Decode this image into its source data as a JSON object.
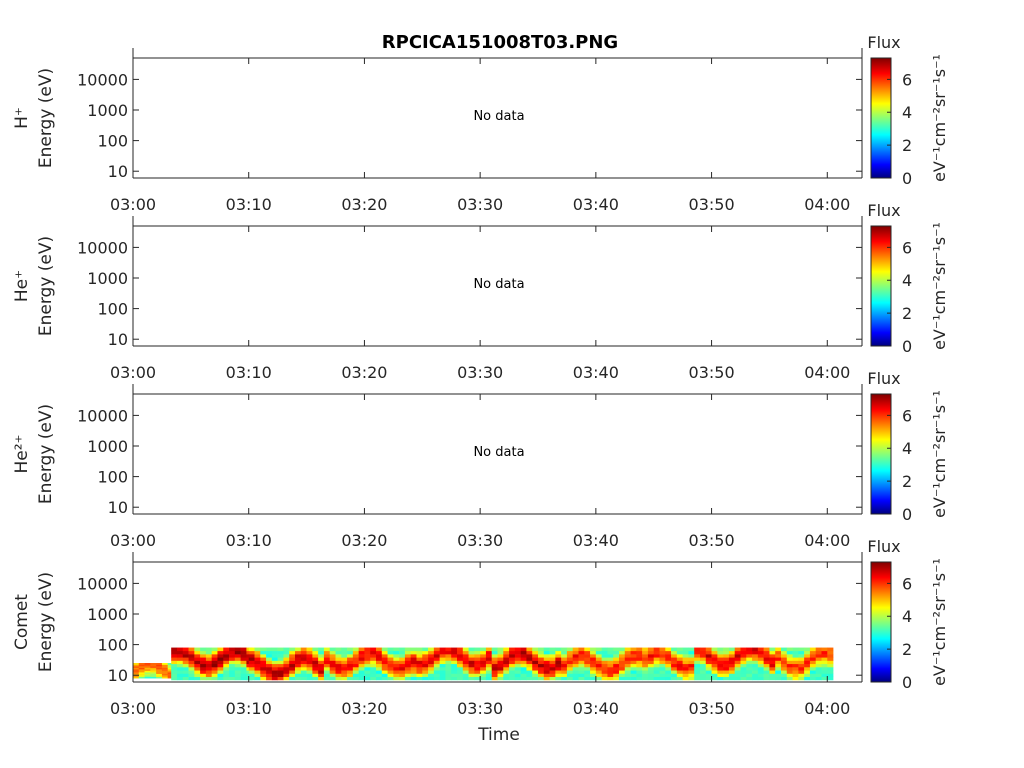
{
  "chart_data": {
    "type": "heatmap",
    "title": "RPCICA151008T03.PNG",
    "xlabel": "Time",
    "x_ticks": [
      "03:00",
      "03:10",
      "03:20",
      "03:30",
      "03:40",
      "03:50",
      "04:00"
    ],
    "x_range_minutes": [
      0,
      63
    ],
    "y_ticks": [
      "10",
      "100",
      "1000",
      "10000"
    ],
    "y_range": [
      6,
      50000
    ],
    "y_scale": "log",
    "colorbar": {
      "label": "Flux",
      "units": "eV⁻¹cm⁻²sr⁻¹s⁻¹",
      "ticks": [
        "0",
        "2",
        "4",
        "6"
      ],
      "range": [
        0,
        7.3
      ],
      "colormap": "jet"
    },
    "panels": [
      {
        "species": "H⁺",
        "ylabel": "Energy (eV)",
        "message": "No data"
      },
      {
        "species": "He⁺",
        "ylabel": "Energy (eV)",
        "message": "No data"
      },
      {
        "species": "He²⁺",
        "ylabel": "Energy (eV)",
        "message": "No data"
      },
      {
        "species": "Comet",
        "ylabel": "Energy (eV)",
        "message": "",
        "spectrogram": {
          "t_start_min": 0,
          "t_end_min": 60.5,
          "segments": [
            {
              "t0": 0.0,
              "t1": 3.3,
              "e_low": 8,
              "e_high": 25,
              "peak_energy": 14,
              "peak_flux": 5.8
            },
            {
              "t0": 3.3,
              "t1": 10.0,
              "e_low": 7,
              "e_high": 80,
              "peak_energy": 35,
              "peak_flux": 7.0
            },
            {
              "t0": 10.0,
              "t1": 16.5,
              "e_low": 7,
              "e_high": 80,
              "peak_energy": 20,
              "peak_flux": 6.8
            },
            {
              "t0": 16.5,
              "t1": 24.0,
              "e_low": 7,
              "e_high": 80,
              "peak_energy": 30,
              "peak_flux": 6.4
            },
            {
              "t0": 24.0,
              "t1": 31.0,
              "e_low": 7,
              "e_high": 80,
              "peak_energy": 40,
              "peak_flux": 6.6
            },
            {
              "t0": 31.0,
              "t1": 37.0,
              "e_low": 7,
              "e_high": 80,
              "peak_energy": 30,
              "peak_flux": 6.8
            },
            {
              "t0": 37.0,
              "t1": 44.5,
              "e_low": 7,
              "e_high": 80,
              "peak_energy": 25,
              "peak_flux": 6.2
            },
            {
              "t0": 44.5,
              "t1": 48.5,
              "e_low": 7,
              "e_high": 80,
              "peak_energy": 30,
              "peak_flux": 6.2
            },
            {
              "t0": 48.5,
              "t1": 55.5,
              "e_low": 7,
              "e_high": 80,
              "peak_energy": 40,
              "peak_flux": 6.6
            },
            {
              "t0": 55.5,
              "t1": 60.5,
              "e_low": 7,
              "e_high": 80,
              "peak_energy": 30,
              "peak_flux": 6.0
            }
          ]
        }
      }
    ]
  }
}
